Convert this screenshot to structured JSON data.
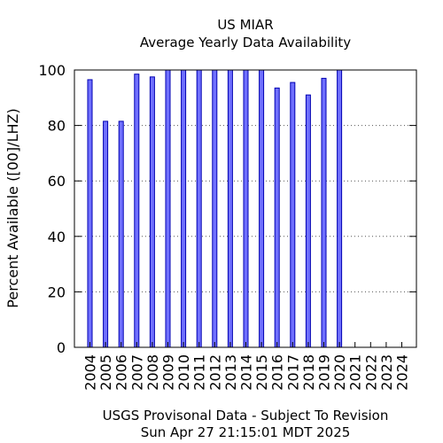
{
  "chart_data": {
    "type": "bar",
    "title": "US MIAR",
    "subtitle": "Average Yearly Data Availability",
    "ylabel": "Percent Available ([00]/LHZ)",
    "xlabel": "USGS Provisonal Data - Subject To Revision",
    "timestamp": "Sun Apr 27 21:15:01 MDT 2025",
    "ylim": [
      0,
      100
    ],
    "yticks": [
      0,
      20,
      40,
      60,
      80,
      100
    ],
    "grid": "horizontal-dotted",
    "bar_color": "#7070ff",
    "bar_edge_color": "#0000b0",
    "categories": [
      "2004",
      "2005",
      "2006",
      "2007",
      "2008",
      "2009",
      "2010",
      "2011",
      "2012",
      "2013",
      "2014",
      "2015",
      "2016",
      "2017",
      "2018",
      "2019",
      "2020",
      "2021",
      "2022",
      "2023",
      "2024"
    ],
    "values": [
      96.5,
      81.5,
      81.5,
      98.5,
      97.5,
      100,
      100,
      100,
      100,
      100,
      100,
      100,
      93.5,
      95.5,
      91,
      97,
      100,
      0,
      0,
      0,
      0
    ]
  }
}
